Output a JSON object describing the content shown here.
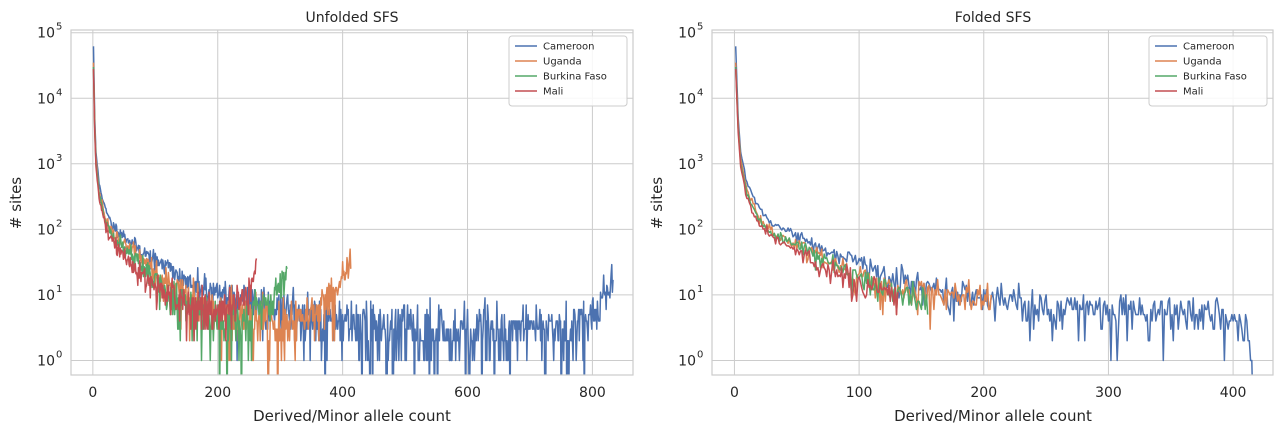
{
  "figure": {
    "panels": [
      {
        "title": "Unfolded SFS",
        "xlabel": "Derived/Minor allele count",
        "ylabel": "# sites",
        "xticks": [
          0,
          200,
          400,
          600,
          800
        ],
        "yticks": [
          {
            "base": "10",
            "exp": "0"
          },
          {
            "base": "10",
            "exp": "1"
          },
          {
            "base": "10",
            "exp": "2"
          },
          {
            "base": "10",
            "exp": "3"
          },
          {
            "base": "10",
            "exp": "4"
          },
          {
            "base": "10",
            "exp": "5"
          }
        ]
      },
      {
        "title": "Folded SFS",
        "xlabel": "Derived/Minor allele count",
        "ylabel": "# sites",
        "xticks": [
          0,
          100,
          200,
          300,
          400
        ],
        "yticks": [
          {
            "base": "10",
            "exp": "0"
          },
          {
            "base": "10",
            "exp": "1"
          },
          {
            "base": "10",
            "exp": "2"
          },
          {
            "base": "10",
            "exp": "3"
          },
          {
            "base": "10",
            "exp": "4"
          },
          {
            "base": "10",
            "exp": "5"
          }
        ]
      }
    ]
  },
  "chart_data": [
    {
      "type": "line",
      "title": "Unfolded SFS",
      "xlabel": "Derived/Minor allele count",
      "ylabel": "# sites",
      "yscale": "log",
      "xlim": [
        -35,
        865
      ],
      "ylim": [
        0.6,
        110000
      ],
      "grid": true,
      "legend": "top-right",
      "series": [
        {
          "name": "Cameroon",
          "color": "#4c72b0",
          "n": 833,
          "points": [
            [
              1,
              62000
            ],
            [
              3,
              5000
            ],
            [
              5,
              1500
            ],
            [
              10,
              500
            ],
            [
              20,
              200
            ],
            [
              30,
              120
            ],
            [
              50,
              80
            ],
            [
              80,
              45
            ],
            [
              120,
              25
            ],
            [
              160,
              15
            ],
            [
              200,
              10
            ],
            [
              300,
              6
            ],
            [
              400,
              4
            ],
            [
              500,
              3
            ],
            [
              600,
              3
            ],
            [
              700,
              3
            ],
            [
              760,
              3.5
            ],
            [
              800,
              5
            ],
            [
              820,
              9
            ],
            [
              833,
              16
            ]
          ]
        },
        {
          "name": "Uganda",
          "color": "#dd8452",
          "n": 413,
          "points": [
            [
              1,
              35000
            ],
            [
              3,
              4000
            ],
            [
              5,
              1200
            ],
            [
              10,
              400
            ],
            [
              20,
              150
            ],
            [
              30,
              90
            ],
            [
              50,
              60
            ],
            [
              80,
              35
            ],
            [
              120,
              15
            ],
            [
              160,
              9
            ],
            [
              200,
              6
            ],
            [
              250,
              4
            ],
            [
              300,
              4
            ],
            [
              340,
              5
            ],
            [
              370,
              8
            ],
            [
              395,
              14
            ],
            [
              413,
              40
            ]
          ]
        },
        {
          "name": "Burkina Faso",
          "color": "#55a868",
          "n": 311,
          "points": [
            [
              1,
              30000
            ],
            [
              3,
              3500
            ],
            [
              5,
              1000
            ],
            [
              10,
              350
            ],
            [
              20,
              130
            ],
            [
              30,
              80
            ],
            [
              50,
              50
            ],
            [
              80,
              25
            ],
            [
              120,
              10
            ],
            [
              160,
              6
            ],
            [
              200,
              4
            ],
            [
              240,
              4
            ],
            [
              270,
              6
            ],
            [
              295,
              12
            ],
            [
              311,
              22
            ]
          ]
        },
        {
          "name": "Mali",
          "color": "#c44e52",
          "n": 262,
          "points": [
            [
              1,
              28000
            ],
            [
              3,
              3000
            ],
            [
              5,
              900
            ],
            [
              10,
              300
            ],
            [
              20,
              110
            ],
            [
              30,
              70
            ],
            [
              50,
              40
            ],
            [
              80,
              20
            ],
            [
              120,
              10
            ],
            [
              160,
              7
            ],
            [
              200,
              6
            ],
            [
              230,
              7
            ],
            [
              250,
              12
            ],
            [
              262,
              25
            ]
          ]
        }
      ]
    },
    {
      "type": "line",
      "title": "Folded SFS",
      "xlabel": "Derived/Minor allele count",
      "ylabel": "# sites",
      "yscale": "log",
      "xlim": [
        -18,
        432
      ],
      "ylim": [
        0.6,
        110000
      ],
      "grid": true,
      "legend": "top-right",
      "series": [
        {
          "name": "Cameroon",
          "color": "#4c72b0",
          "n": 416,
          "points": [
            [
              1,
              62000
            ],
            [
              3,
              5000
            ],
            [
              5,
              1500
            ],
            [
              10,
              500
            ],
            [
              20,
              210
            ],
            [
              30,
              130
            ],
            [
              50,
              80
            ],
            [
              80,
              40
            ],
            [
              100,
              30
            ],
            [
              120,
              20
            ],
            [
              150,
              13
            ],
            [
              200,
              9
            ],
            [
              250,
              7
            ],
            [
              300,
              6
            ],
            [
              350,
              5
            ],
            [
              400,
              5
            ],
            [
              410,
              3
            ],
            [
              416,
              1
            ]
          ]
        },
        {
          "name": "Uganda",
          "color": "#dd8452",
          "n": 206,
          "points": [
            [
              1,
              35000
            ],
            [
              3,
              4000
            ],
            [
              5,
              1200
            ],
            [
              10,
              400
            ],
            [
              20,
              150
            ],
            [
              30,
              90
            ],
            [
              50,
              60
            ],
            [
              80,
              30
            ],
            [
              100,
              20
            ],
            [
              130,
              12
            ],
            [
              160,
              10
            ],
            [
              180,
              9
            ],
            [
              206,
              9
            ]
          ]
        },
        {
          "name": "Burkina Faso",
          "color": "#55a868",
          "n": 155,
          "points": [
            [
              1,
              30000
            ],
            [
              3,
              3500
            ],
            [
              5,
              1000
            ],
            [
              10,
              350
            ],
            [
              20,
              130
            ],
            [
              30,
              85
            ],
            [
              50,
              55
            ],
            [
              80,
              28
            ],
            [
              100,
              18
            ],
            [
              120,
              12
            ],
            [
              140,
              10
            ],
            [
              155,
              9
            ]
          ]
        },
        {
          "name": "Mali",
          "color": "#c44e52",
          "n": 131,
          "points": [
            [
              1,
              28000
            ],
            [
              3,
              3000
            ],
            [
              5,
              900
            ],
            [
              10,
              300
            ],
            [
              20,
              115
            ],
            [
              30,
              75
            ],
            [
              50,
              45
            ],
            [
              80,
              22
            ],
            [
              100,
              15
            ],
            [
              120,
              11
            ],
            [
              131,
              10
            ]
          ]
        }
      ]
    }
  ]
}
